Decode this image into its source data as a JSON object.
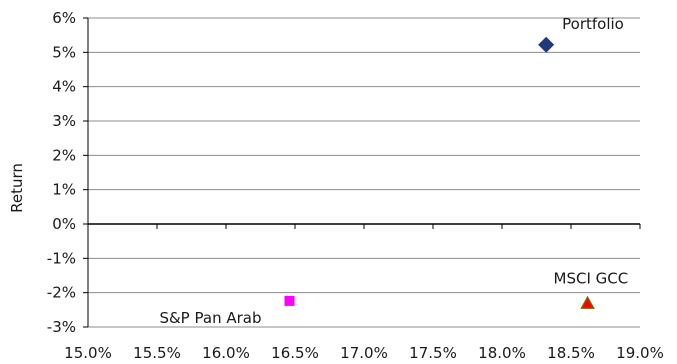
{
  "chart_data": {
    "type": "scatter",
    "title": "",
    "xlabel": "",
    "ylabel": "Return",
    "xlim": [
      0.15,
      0.19
    ],
    "ylim": [
      -0.03,
      0.06
    ],
    "x_ticks": [
      "15.0%",
      "15.5%",
      "16.0%",
      "16.5%",
      "17.0%",
      "17.5%",
      "18.0%",
      "18.5%",
      "19.0%"
    ],
    "y_ticks": [
      "6%",
      "5%",
      "4%",
      "3%",
      "2%",
      "1%",
      "0%",
      "-1%",
      "-2%",
      "-3%"
    ],
    "gridlines": "horizontal",
    "points": [
      {
        "label": "Portfolio",
        "x": 0.1832,
        "y": 0.0522,
        "marker": "diamond",
        "color": "#1f3a7a"
      },
      {
        "label": "S&P Pan Arab",
        "x": 0.1646,
        "y": -0.0224,
        "marker": "square",
        "color": "#ff00ff"
      },
      {
        "label": "MSCI GCC",
        "x": 0.1862,
        "y": -0.0231,
        "marker": "triangle",
        "color": "#ff0000",
        "edge_color": "#8b5a00"
      }
    ]
  }
}
